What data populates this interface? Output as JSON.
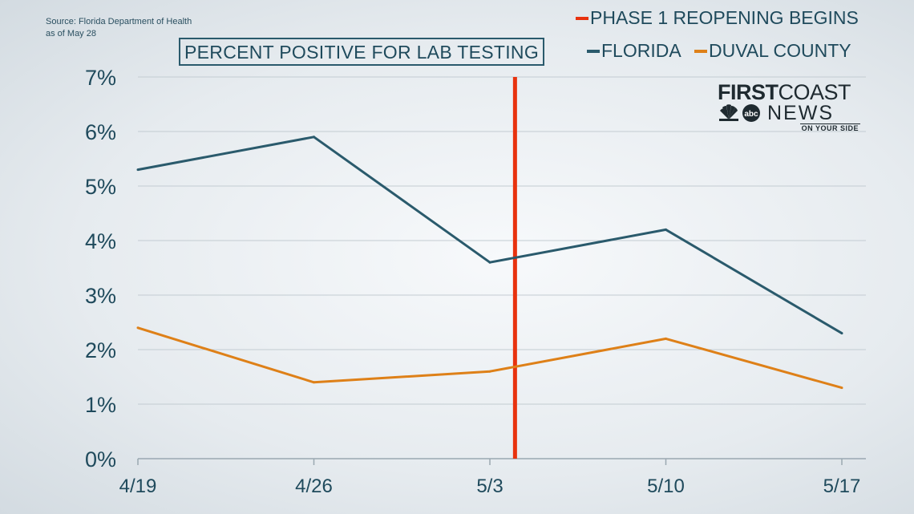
{
  "source": {
    "line1": "Source: Florida Department of Health",
    "line2": "as of May 28"
  },
  "logo": {
    "first": "FIRST",
    "coast": "COAST",
    "news": "NEWS",
    "tagline": "ON YOUR SIDE",
    "icon": "peacock-abc-icon"
  },
  "colors": {
    "florida": "#2a5a6c",
    "duval": "#de8018",
    "phase": "#e8320e",
    "grid": "#c3ccd2",
    "text": "#1f4a5c"
  },
  "chart_data": {
    "type": "line",
    "title": "PERCENT POSITIVE FOR LAB TESTING",
    "categories": [
      "4/19",
      "4/26",
      "5/3",
      "5/10",
      "5/17"
    ],
    "y_ticks": [
      "0%",
      "1%",
      "2%",
      "3%",
      "4%",
      "5%",
      "6%",
      "7%"
    ],
    "ylim": [
      0,
      7
    ],
    "grid": true,
    "legend_placement": "top-right",
    "series": [
      {
        "name": "FLORIDA",
        "values": [
          5.3,
          5.9,
          3.6,
          4.2,
          2.3
        ]
      },
      {
        "name": "DUVAL COUNTY",
        "values": [
          2.4,
          1.4,
          1.6,
          2.2,
          1.3
        ]
      }
    ],
    "annotation": {
      "label": "PHASE 1 REOPENING BEGINS",
      "x": "5/4"
    }
  }
}
